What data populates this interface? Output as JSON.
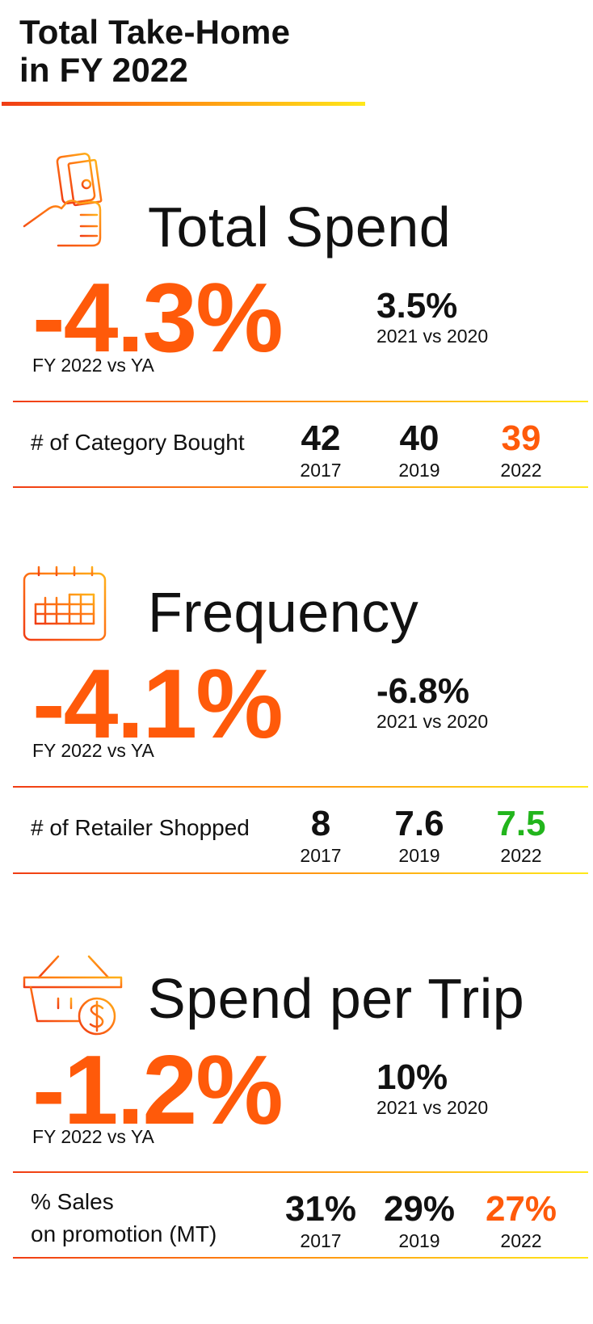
{
  "page": {
    "title_line1": "Total Take-Home",
    "title_line2": "in FY 2022"
  },
  "colors": {
    "accent_orange": "#ff5a0a",
    "positive_green": "#22b51c",
    "text_black": "#111111"
  },
  "sections": [
    {
      "icon": "hand-holding-money-icon",
      "title": "Total Spend",
      "main_value": "-4.3%",
      "main_label": "FY 2022 vs YA",
      "side_value": "3.5%",
      "side_label": "2021 vs 2020",
      "row_label_line1": "# of Category Bought",
      "row_label_line2": "",
      "stats": [
        {
          "value": "42",
          "year": "2017",
          "color": "#111111"
        },
        {
          "value": "40",
          "year": "2019",
          "color": "#111111"
        },
        {
          "value": "39",
          "year": "2022",
          "color": "#ff5a0a"
        }
      ]
    },
    {
      "icon": "calendar-icon",
      "title": "Frequency",
      "main_value": "-4.1%",
      "main_label": "FY 2022 vs YA",
      "side_value": "-6.8%",
      "side_label": "2021 vs 2020",
      "row_label_line1": "# of Retailer Shopped",
      "row_label_line2": "",
      "stats": [
        {
          "value": "8",
          "year": "2017",
          "color": "#111111"
        },
        {
          "value": "7.6",
          "year": "2019",
          "color": "#111111"
        },
        {
          "value": "7.5",
          "year": "2022",
          "color": "#22b51c"
        }
      ]
    },
    {
      "icon": "shopping-basket-dollar-icon",
      "title": "Spend per Trip",
      "main_value": "-1.2%",
      "main_label": "FY 2022 vs YA",
      "side_value": "10%",
      "side_label": "2021 vs 2020",
      "row_label_line1": "% Sales",
      "row_label_line2": "on promotion (MT)",
      "stats": [
        {
          "value": "31%",
          "year": "2017",
          "color": "#111111"
        },
        {
          "value": "29%",
          "year": "2019",
          "color": "#111111"
        },
        {
          "value": "27%",
          "year": "2022",
          "color": "#ff5a0a"
        }
      ]
    }
  ]
}
